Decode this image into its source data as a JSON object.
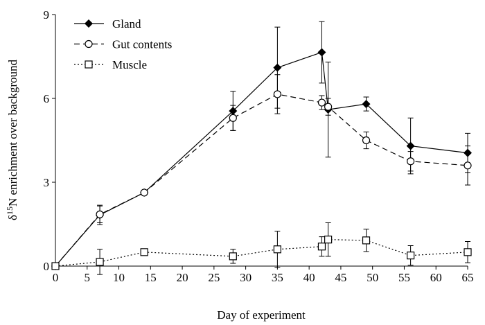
{
  "chart_data": {
    "type": "line",
    "xlabel": "Day of experiment",
    "ylabel": [
      "δ",
      "15",
      "N enrichment over background"
    ],
    "x": [
      0,
      7,
      14,
      28,
      35,
      42,
      43,
      49,
      56,
      65
    ],
    "xlim": [
      0,
      65
    ],
    "xticks": [
      0,
      5,
      10,
      15,
      20,
      25,
      30,
      35,
      40,
      45,
      50,
      55,
      60,
      65
    ],
    "ylim": [
      0,
      9
    ],
    "yticks": [
      0,
      3,
      6,
      9
    ],
    "grid": false,
    "legend": "upper left",
    "series": [
      {
        "name": "Gland",
        "color": "#000000",
        "line_style": "solid",
        "marker": "diamond-filled",
        "values": [
          0,
          1.83,
          2.63,
          5.55,
          7.1,
          7.65,
          5.6,
          5.8,
          4.3,
          4.05
        ],
        "errors": [
          0,
          0.35,
          0.05,
          0.7,
          1.45,
          1.1,
          1.7,
          0.25,
          1.0,
          0.7
        ]
      },
      {
        "name": "Gut contents",
        "color": "#000000",
        "line_style": "dashed",
        "marker": "circle-open",
        "values": [
          0,
          1.85,
          2.63,
          5.3,
          6.15,
          5.85,
          5.7,
          4.5,
          3.75,
          3.6
        ],
        "errors": [
          0,
          0.3,
          0.05,
          0.45,
          0.7,
          0.25,
          0.3,
          0.3,
          0.35,
          0.7
        ]
      },
      {
        "name": "Muscle",
        "color": "#000000",
        "line_style": "dotted",
        "marker": "square-open",
        "values": [
          0,
          0.15,
          0.5,
          0.35,
          0.6,
          0.7,
          0.95,
          0.92,
          0.38,
          0.5
        ],
        "errors": [
          0,
          0.45,
          0,
          0.25,
          0.65,
          0.35,
          0.6,
          0.4,
          0.35,
          0.38
        ]
      }
    ]
  }
}
